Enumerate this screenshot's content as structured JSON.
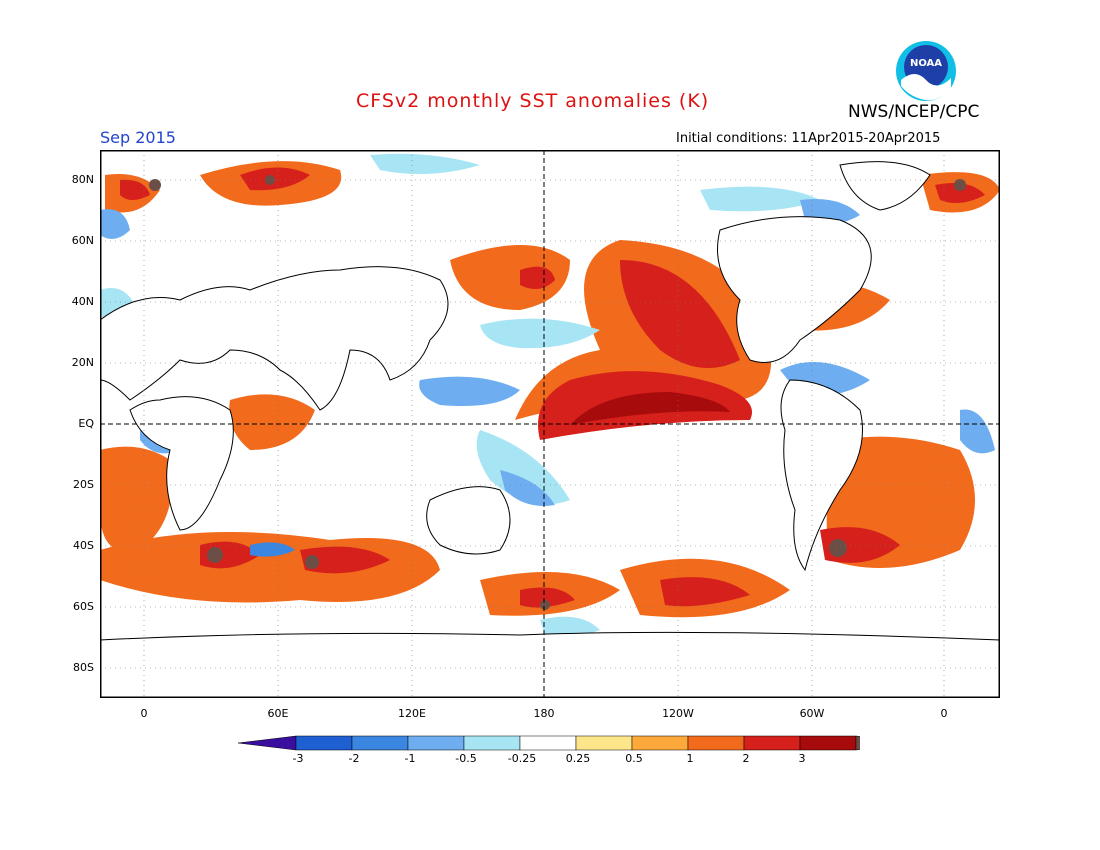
{
  "header": {
    "title": "CFSv2 monthly SST anomalies (K)",
    "title_color": "#dd1111",
    "agency": "NWS/NCEP/CPC",
    "month_label": "Sep 2015",
    "month_color": "#2244cc",
    "initial_conditions": "Initial conditions: 11Apr2015-20Apr2015",
    "logo_text": "NOAA"
  },
  "axes": {
    "y_labels": [
      "80N",
      "60N",
      "40N",
      "20N",
      "EQ",
      "20S",
      "40S",
      "60S",
      "80S"
    ],
    "x_labels": [
      "0",
      "60E",
      "120E",
      "180",
      "120W",
      "60W",
      "0"
    ]
  },
  "legend": {
    "levels": [
      "-3",
      "-2",
      "-1",
      "-0.5",
      "-0.25",
      "0.25",
      "0.5",
      "1",
      "2",
      "3"
    ],
    "colors": [
      "#3a0fa0",
      "#1e5fd2",
      "#3a86e0",
      "#6eaef0",
      "#a7e5f4",
      "#ffffff",
      "#fde68a",
      "#fca83a",
      "#f26a1b",
      "#d6201c",
      "#a80b0b",
      "#6b4f46"
    ]
  }
}
